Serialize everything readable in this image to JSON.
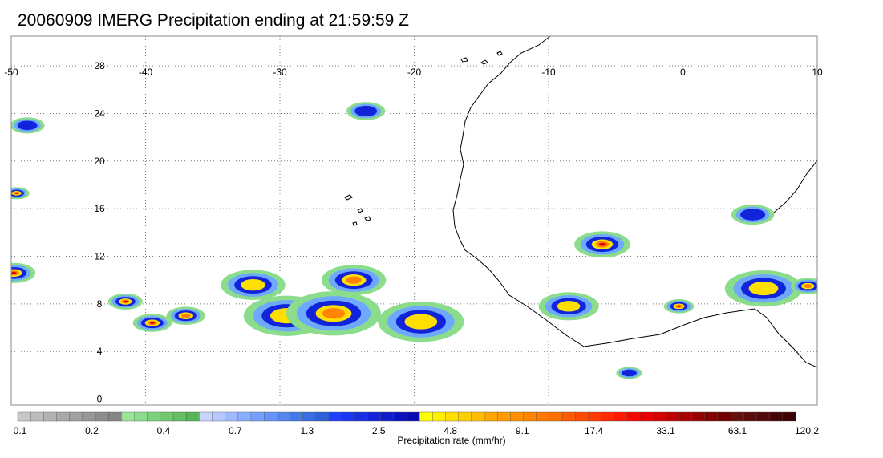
{
  "title": "20060909 IMERG Precipitation ending at 21:59:59 Z",
  "map": {
    "lon_range": [
      -50,
      10
    ],
    "lat_range": [
      -0.5,
      30.5
    ],
    "lon_ticks": [
      "-50",
      "-40",
      "-30",
      "-20",
      "-10",
      "0",
      "10"
    ],
    "lat_ticks": [
      "28",
      "24",
      "20",
      "16",
      "12",
      "8",
      "4",
      "0"
    ],
    "grid": "dotted",
    "coastline_color": "#000000"
  },
  "colorbar": {
    "label": "Precipitation rate (mm/hr)",
    "tick_labels": [
      "0.1",
      "0.2",
      "0.4",
      "0.7",
      "1.3",
      "2.5",
      "4.8",
      "9.1",
      "17.4",
      "33.1",
      "63.1",
      "120.2"
    ],
    "colors": [
      "#c8c8c8",
      "#bdbdbd",
      "#b3b3b3",
      "#a9a9a9",
      "#a0a0a0",
      "#969696",
      "#8d8d8d",
      "#858585",
      "#9be39b",
      "#8bdc8b",
      "#7cd27c",
      "#6fc96f",
      "#62bf62",
      "#56b556",
      "#c8d4ff",
      "#b5c8ff",
      "#a0baff",
      "#8aadff",
      "#76a0ff",
      "#6494f5",
      "#5487ee",
      "#447ae6",
      "#386ddf",
      "#2c61d8",
      "#1f3fff",
      "#1a36f2",
      "#162de6",
      "#1224d9",
      "#0e1bcc",
      "#0a12bf",
      "#0a0ab3",
      "#ffff00",
      "#ffef00",
      "#ffdf00",
      "#ffcf00",
      "#ffbf00",
      "#ffa500",
      "#ff9a00",
      "#ff8f00",
      "#ff8400",
      "#ff7900",
      "#ff6e00",
      "#ff5a00",
      "#ff4a00",
      "#ff3a00",
      "#ff2a00",
      "#ff1a00",
      "#f50a00",
      "#e60000",
      "#d20000",
      "#be0000",
      "#aa0000",
      "#960000",
      "#820000",
      "#6e0000",
      "#641010",
      "#5a0c0c",
      "#500808",
      "#460404",
      "#3c0000"
    ]
  },
  "precip_cells": [
    {
      "lon": -49.8,
      "lat": 10.6,
      "r": 1.0,
      "level": 3
    },
    {
      "lon": -49.6,
      "lat": 17.3,
      "r": 0.6,
      "level": 3
    },
    {
      "lon": -41.5,
      "lat": 8.2,
      "r": 0.8,
      "level": 3
    },
    {
      "lon": -39.5,
      "lat": 6.4,
      "r": 0.9,
      "level": 3
    },
    {
      "lon": -37.0,
      "lat": 7.0,
      "r": 0.9,
      "level": 2
    },
    {
      "lon": -32.0,
      "lat": 9.6,
      "r": 1.5,
      "level": 1
    },
    {
      "lon": -29.5,
      "lat": 7.0,
      "r": 2.0,
      "level": 1
    },
    {
      "lon": -26.0,
      "lat": 7.2,
      "r": 2.2,
      "level": 2
    },
    {
      "lon": -24.5,
      "lat": 10.0,
      "r": 1.5,
      "level": 2
    },
    {
      "lon": -19.5,
      "lat": 6.5,
      "r": 2.0,
      "level": 1
    },
    {
      "lon": -6.0,
      "lat": 13.0,
      "r": 1.3,
      "level": 3
    },
    {
      "lon": -8.5,
      "lat": 7.8,
      "r": 1.4,
      "level": 1
    },
    {
      "lon": -0.3,
      "lat": 7.8,
      "r": 0.7,
      "level": 3
    },
    {
      "lon": 6.0,
      "lat": 9.3,
      "r": 1.8,
      "level": 1
    },
    {
      "lon": 9.3,
      "lat": 9.5,
      "r": 0.8,
      "level": 2
    },
    {
      "lon": 5.2,
      "lat": 15.5,
      "r": 1.0,
      "level": 0
    },
    {
      "lon": -23.6,
      "lat": 24.2,
      "r": 0.9,
      "level": 0
    },
    {
      "lon": -48.8,
      "lat": 23.0,
      "r": 0.8,
      "level": 0
    },
    {
      "lon": -4.0,
      "lat": 2.2,
      "r": 0.6,
      "level": 0
    }
  ]
}
